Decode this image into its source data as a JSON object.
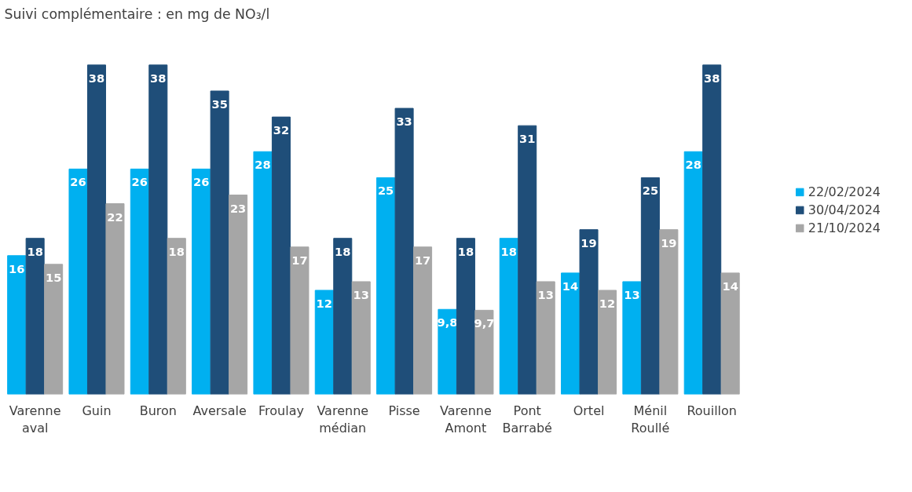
{
  "chart_data": {
    "type": "bar",
    "title": "Suivi complémentaire : en mg de NO₃/l",
    "categories": [
      "Varenne aval",
      "Guin",
      "Buron",
      "Aversale",
      "Froulay",
      "Varenne médian",
      "Pisse",
      "Varenne Amont",
      "Pont Barrabé",
      "Ortel",
      "Ménil Roullé",
      "Rouillon"
    ],
    "series": [
      {
        "name": "22/02/2024",
        "color": "#00b0f0",
        "values": [
          16,
          26,
          26,
          26,
          28,
          12,
          25,
          9.8,
          18,
          14,
          13,
          28
        ],
        "value_labels": [
          "16",
          "26",
          "26",
          "26",
          "28",
          "12",
          "25",
          "9,8",
          "18",
          "14",
          "13",
          "28"
        ]
      },
      {
        "name": "30/04/2024",
        "color": "#1f4e79",
        "values": [
          18,
          38,
          38,
          35,
          32,
          18,
          33,
          18,
          31,
          19,
          25,
          38
        ],
        "value_labels": [
          "18",
          "38",
          "38",
          "35",
          "32",
          "18",
          "33",
          "18",
          "31",
          "19",
          "25",
          "38"
        ]
      },
      {
        "name": "21/10/2024",
        "color": "#a6a6a6",
        "values": [
          15,
          22,
          18,
          23,
          17,
          13,
          17,
          9.7,
          13,
          12,
          19,
          14
        ],
        "value_labels": [
          "15",
          "22",
          "18",
          "23",
          "17",
          "13",
          "17",
          "9,7",
          "13",
          "12",
          "19",
          "14"
        ]
      }
    ],
    "legend": "right",
    "grid": false
  }
}
